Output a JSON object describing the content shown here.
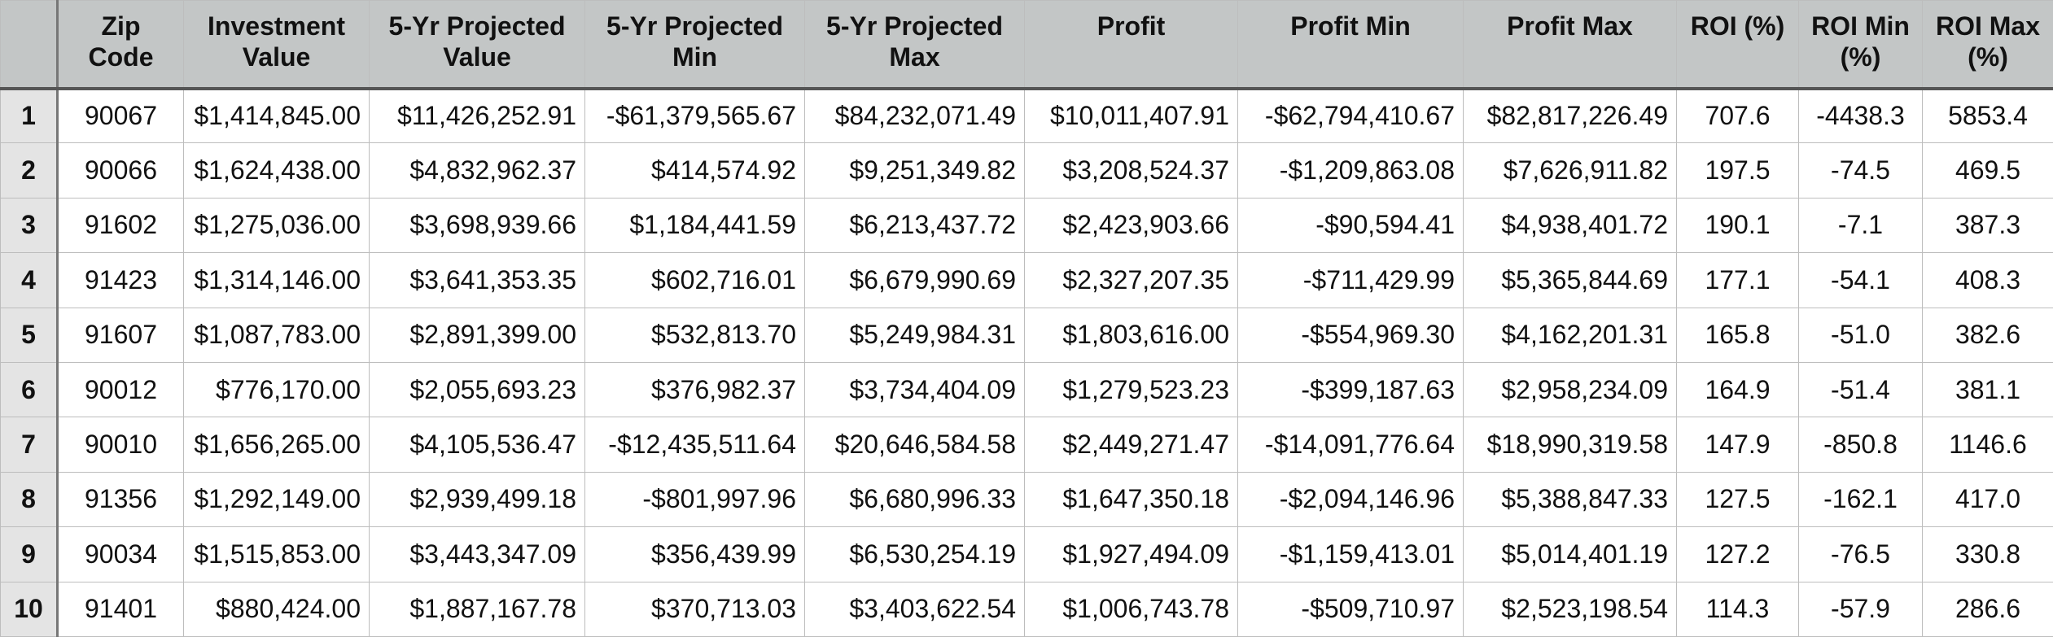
{
  "table": {
    "headers": [
      "",
      "Zip Code",
      "Investment Value",
      "5-Yr Projected Value",
      "5-Yr Projected Min",
      "5-Yr Projected Max",
      "Profit",
      "Profit Min",
      "Profit Max",
      "ROI (%)",
      "ROI Min (%)",
      "ROI Max (%)"
    ],
    "rows": [
      [
        "1",
        "90067",
        "$1,414,845.00",
        "$11,426,252.91",
        "-$61,379,565.67",
        "$84,232,071.49",
        "$10,011,407.91",
        "-$62,794,410.67",
        "$82,817,226.49",
        "707.6",
        "-4438.3",
        "5853.4"
      ],
      [
        "2",
        "90066",
        "$1,624,438.00",
        "$4,832,962.37",
        "$414,574.92",
        "$9,251,349.82",
        "$3,208,524.37",
        "-$1,209,863.08",
        "$7,626,911.82",
        "197.5",
        "-74.5",
        "469.5"
      ],
      [
        "3",
        "91602",
        "$1,275,036.00",
        "$3,698,939.66",
        "$1,184,441.59",
        "$6,213,437.72",
        "$2,423,903.66",
        "-$90,594.41",
        "$4,938,401.72",
        "190.1",
        "-7.1",
        "387.3"
      ],
      [
        "4",
        "91423",
        "$1,314,146.00",
        "$3,641,353.35",
        "$602,716.01",
        "$6,679,990.69",
        "$2,327,207.35",
        "-$711,429.99",
        "$5,365,844.69",
        "177.1",
        "-54.1",
        "408.3"
      ],
      [
        "5",
        "91607",
        "$1,087,783.00",
        "$2,891,399.00",
        "$532,813.70",
        "$5,249,984.31",
        "$1,803,616.00",
        "-$554,969.30",
        "$4,162,201.31",
        "165.8",
        "-51.0",
        "382.6"
      ],
      [
        "6",
        "90012",
        "$776,170.00",
        "$2,055,693.23",
        "$376,982.37",
        "$3,734,404.09",
        "$1,279,523.23",
        "-$399,187.63",
        "$2,958,234.09",
        "164.9",
        "-51.4",
        "381.1"
      ],
      [
        "7",
        "90010",
        "$1,656,265.00",
        "$4,105,536.47",
        "-$12,435,511.64",
        "$20,646,584.58",
        "$2,449,271.47",
        "-$14,091,776.64",
        "$18,990,319.58",
        "147.9",
        "-850.8",
        "1146.6"
      ],
      [
        "8",
        "91356",
        "$1,292,149.00",
        "$2,939,499.18",
        "-$801,997.96",
        "$6,680,996.33",
        "$1,647,350.18",
        "-$2,094,146.96",
        "$5,388,847.33",
        "127.5",
        "-162.1",
        "417.0"
      ],
      [
        "9",
        "90034",
        "$1,515,853.00",
        "$3,443,347.09",
        "$356,439.99",
        "$6,530,254.19",
        "$1,927,494.09",
        "-$1,159,413.01",
        "$5,014,401.19",
        "127.2",
        "-76.5",
        "330.8"
      ],
      [
        "10",
        "91401",
        "$880,424.00",
        "$1,887,167.78",
        "$370,713.03",
        "$3,403,622.54",
        "$1,006,743.78",
        "-$509,710.97",
        "$2,523,198.54",
        "114.3",
        "-57.9",
        "286.6"
      ]
    ]
  }
}
